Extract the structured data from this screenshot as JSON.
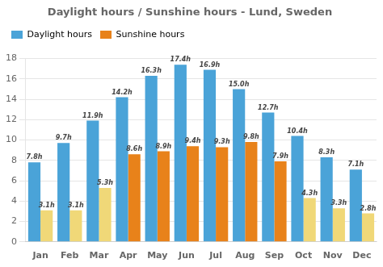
{
  "chart_data": {
    "type": "bar",
    "title": "Daylight hours / Sunshine hours - Lund, Sweden",
    "categories": [
      "Jan",
      "Feb",
      "Mar",
      "Apr",
      "May",
      "Jun",
      "Jul",
      "Aug",
      "Sep",
      "Oct",
      "Nov",
      "Dec"
    ],
    "series": [
      {
        "name": "Daylight hours",
        "color": "#4aa3d8",
        "values": [
          7.8,
          9.7,
          11.9,
          14.2,
          16.3,
          17.4,
          16.9,
          15.0,
          12.7,
          10.4,
          8.3,
          7.1
        ],
        "value_labels": [
          "7.8h",
          "9.7h",
          "11.9h",
          "14.2h",
          "16.3h",
          "17.4h",
          "16.9h",
          "15.0h",
          "12.7h",
          "10.4h",
          "8.3h",
          "7.1h"
        ]
      },
      {
        "name": "Sunshine hours",
        "color": "#e8821a",
        "colors": [
          "#f0d878",
          "#f0d878",
          "#f0d878",
          "#e8821a",
          "#e8821a",
          "#e8821a",
          "#e8821a",
          "#e8821a",
          "#e8821a",
          "#f0d878",
          "#f0d878",
          "#f0d878"
        ],
        "values": [
          3.1,
          3.1,
          5.3,
          8.6,
          8.9,
          9.4,
          9.3,
          9.8,
          7.9,
          4.3,
          3.3,
          2.8
        ],
        "value_labels": [
          "3.1h",
          "3.1h",
          "5.3h",
          "8.6h",
          "8.9h",
          "9.4h",
          "9.3h",
          "9.8h",
          "7.9h",
          "4.3h",
          "3.3h",
          "2.8h"
        ]
      }
    ],
    "ylim": [
      0,
      18
    ],
    "yticks": [
      0,
      2,
      4,
      6,
      8,
      10,
      12,
      14,
      16,
      18
    ],
    "grid": true,
    "legend": "upper left",
    "data_labels": true
  }
}
